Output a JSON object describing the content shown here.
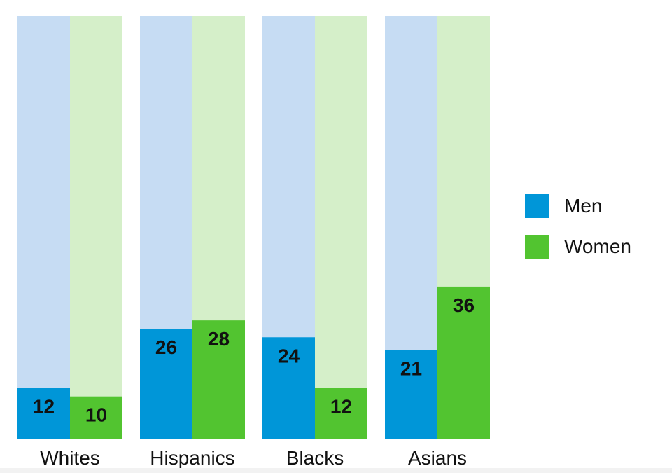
{
  "chart_data": {
    "type": "bar",
    "categories": [
      "Whites",
      "Hispanics",
      "Blacks",
      "Asians"
    ],
    "series": [
      {
        "name": "Men",
        "values": [
          12,
          26,
          24,
          21
        ]
      },
      {
        "name": "Women",
        "values": [
          10,
          28,
          12,
          36
        ]
      }
    ],
    "ylim": [
      0,
      100
    ],
    "grid": false,
    "legend_position": "right",
    "colors": {
      "Men": "#0096d8",
      "Women": "#52c430",
      "Men_background": "#c6dcf3",
      "Women_background": "#d5efc9"
    }
  },
  "legend": [
    {
      "label": "Men",
      "color": "#0096d8"
    },
    {
      "label": "Women",
      "color": "#52c430"
    }
  ]
}
